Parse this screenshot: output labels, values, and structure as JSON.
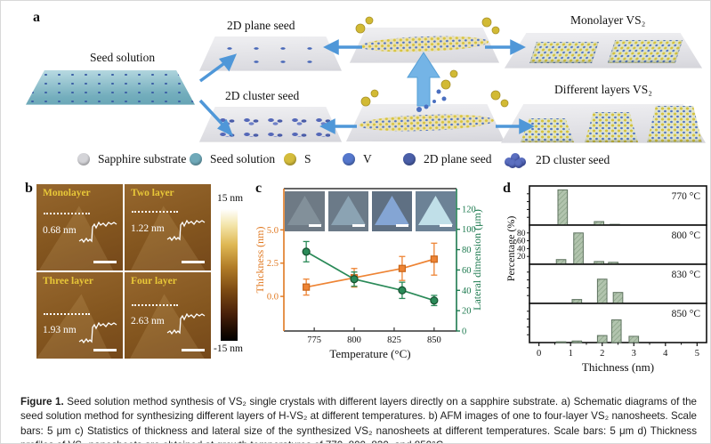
{
  "panels": {
    "a": "a",
    "b": "b",
    "c": "c",
    "d": "d"
  },
  "panel_a": {
    "labels": {
      "seed_solution": "Seed solution",
      "plane_seed": "2D plane seed",
      "cluster_seed": "2D cluster seed",
      "monolayer": "Monolayer VS₂",
      "different_layers": "Different layers VS₂"
    },
    "legend": [
      {
        "label": "Sapphire substrate",
        "icon": "circle",
        "color": "#d4d4d8"
      },
      {
        "label": "Seed solution",
        "icon": "circle",
        "color": "#6fa9b9"
      },
      {
        "label": "S",
        "icon": "circle",
        "color": "#d4bc3c"
      },
      {
        "label": "V",
        "icon": "circle",
        "color": "#5577cc"
      },
      {
        "label": "2D plane seed",
        "icon": "circle",
        "color": "#4a5fa8"
      },
      {
        "label": "2D cluster seed",
        "icon": "cluster",
        "color": "#5b6fc0"
      }
    ]
  },
  "panel_b": {
    "images": [
      {
        "label": "Monolayer",
        "thickness": "0.68 nm"
      },
      {
        "label": "Two layer",
        "thickness": "1.22 nm"
      },
      {
        "label": "Three layer",
        "thickness": "1.93 nm"
      },
      {
        "label": "Four layer",
        "thickness": "2.63 nm"
      }
    ],
    "colorbar": {
      "top": "15 nm",
      "bottom": "-15 nm"
    }
  },
  "chart_data": [
    {
      "name": "panel_c",
      "type": "scatter",
      "x": [
        770,
        800,
        830,
        850
      ],
      "x_range": [
        756,
        864
      ],
      "xticks": [
        775,
        800,
        825,
        850
      ],
      "xlabel": "Temperature (°C)",
      "left_axis": {
        "label": "Thickness (nm)",
        "color": "#e07820",
        "ticks": [
          0.0,
          2.5,
          5.0
        ],
        "range": [
          -2.6,
          8.1
        ]
      },
      "right_axis": {
        "label": "Lateral dimension (μm)",
        "color": "#1d7a4f",
        "ticks": [
          0,
          20,
          40,
          60,
          80,
          100,
          120
        ],
        "range": [
          0,
          140
        ]
      },
      "series": [
        {
          "name": "Thickness",
          "axis": "left",
          "marker": "square",
          "color": "#ee8434",
          "edge": "#c9661a",
          "values": [
            0.7,
            1.4,
            2.1,
            2.8
          ],
          "errors": [
            0.6,
            0.7,
            0.9,
            1.2
          ]
        },
        {
          "name": "Lateral dimension",
          "axis": "right",
          "marker": "circle",
          "color": "#2a8a58",
          "edge": "#15502f",
          "values": [
            78,
            51,
            40,
            30
          ],
          "errors": [
            10,
            7,
            8,
            5
          ]
        }
      ],
      "insets": [
        {
          "bg": "#6e7a85",
          "tri": "#82909a"
        },
        {
          "bg": "#6b7a88",
          "tri": "#8ba3b3"
        },
        {
          "bg": "#5f7083",
          "tri": "#84a5d4"
        },
        {
          "bg": "#6c8296",
          "tri": "#c0dfe8"
        }
      ],
      "legend_position": "none",
      "grid": false
    },
    {
      "name": "panel_d",
      "type": "bar",
      "xlabel": "Thichness (nm)",
      "ylabel": "Percentage (%)",
      "xticks": [
        0,
        1,
        2,
        3,
        4,
        5
      ],
      "x_range": [
        -0.3,
        5.3
      ],
      "yticks": [
        20,
        40,
        60,
        80
      ],
      "y_range": [
        0,
        100
      ],
      "bar_width": 0.3,
      "bar_color": "#b2c4ae",
      "bar_hatch_color": "#86a083",
      "bar_edge_color": "#5f7360",
      "subplots": [
        {
          "label": "770 °C",
          "bars": [
            {
              "x": 0.75,
              "h": 90
            },
            {
              "x": 1.9,
              "h": 9
            },
            {
              "x": 2.4,
              "h": 2
            }
          ]
        },
        {
          "label": "800 °C",
          "bars": [
            {
              "x": 0.7,
              "h": 12
            },
            {
              "x": 1.25,
              "h": 80
            },
            {
              "x": 1.9,
              "h": 7
            },
            {
              "x": 2.35,
              "h": 5
            }
          ]
        },
        {
          "label": "830 °C",
          "bars": [
            {
              "x": 0.7,
              "h": 1
            },
            {
              "x": 1.2,
              "h": 10
            },
            {
              "x": 2.0,
              "h": 62
            },
            {
              "x": 2.5,
              "h": 28
            }
          ]
        },
        {
          "label": "850 °C",
          "bars": [
            {
              "x": 0.7,
              "h": 2
            },
            {
              "x": 1.2,
              "h": 4
            },
            {
              "x": 2.0,
              "h": 18
            },
            {
              "x": 2.45,
              "h": 58
            },
            {
              "x": 3.0,
              "h": 16
            }
          ]
        }
      ],
      "grid": false
    }
  ],
  "caption": {
    "label": "Figure 1.",
    "text": " Seed solution method synthesis of VS₂ single crystals with different layers directly on a sapphire substrate. a) Schematic diagrams of the seed solution method for synthesizing different layers of H-VS₂ at different temperatures. b) AFM images of one to four-layer VS₂ nanosheets. Scale bars: 5 μm c) Statistics of thickness and lateral size of the synthesized VS₂ nanosheets at different temperatures. Scale bars: 5 μm d) Thickness profiles of VS₂ nanosheets are obtained at growth temperatures of 770, 800, 830, and 850°C."
  }
}
